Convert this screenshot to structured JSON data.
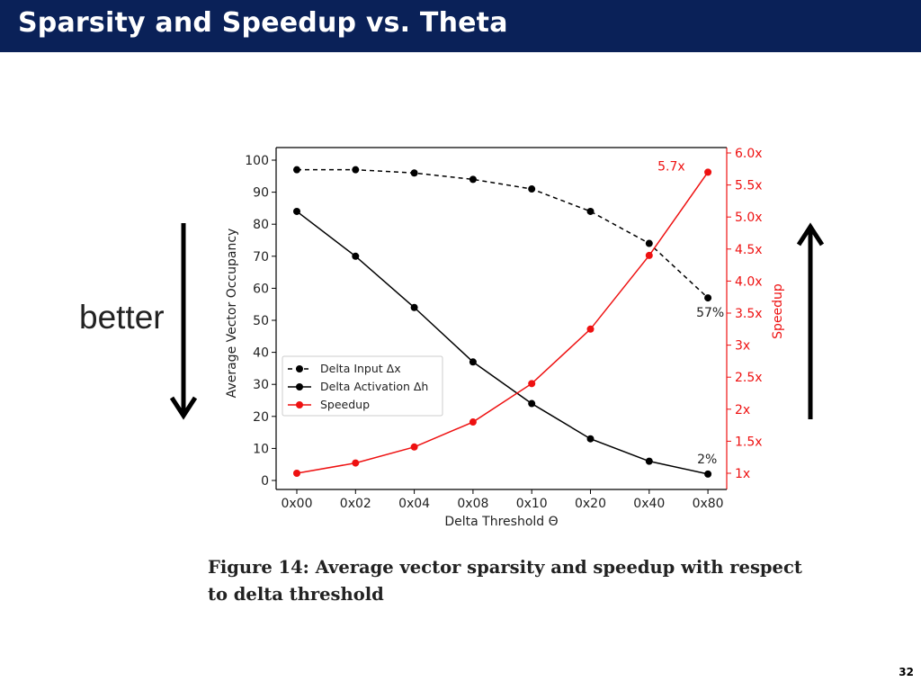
{
  "slide": {
    "title": "Sparsity and Speedup vs. Theta",
    "side_label": "better",
    "caption": "Figure 14: Average vector sparsity and speedup with respect to delta threshold",
    "page_number": "32"
  },
  "chart_data": {
    "type": "line",
    "xlabel": "Delta Threshold Θ",
    "ylabel_left": "Average Vector Occupancy",
    "ylabel_right": "Speedup",
    "categories": [
      "0x00",
      "0x02",
      "0x04",
      "0x08",
      "0x10",
      "0x20",
      "0x40",
      "0x80"
    ],
    "ylim_left": [
      0,
      100
    ],
    "yticks_left": [
      0,
      10,
      20,
      30,
      40,
      50,
      60,
      70,
      80,
      90,
      100
    ],
    "ylim_right": [
      1,
      6
    ],
    "yticks_right": [
      1,
      1.5,
      2,
      2.5,
      3,
      3.5,
      4,
      4.5,
      5,
      5.5,
      6
    ],
    "ytick_labels_right": [
      "1x",
      "1.5x",
      "2x",
      "2.5x",
      "3x",
      "3.5x",
      "4.0x",
      "4.5x",
      "5.0x",
      "5.5x",
      "6.0x"
    ],
    "series": [
      {
        "name": "Delta Input Δx",
        "axis": "left",
        "style": "dashed",
        "color": "#000000",
        "values": [
          97,
          97,
          96,
          94,
          91,
          84,
          74,
          57
        ]
      },
      {
        "name": "Delta Activation Δh",
        "axis": "left",
        "style": "solid",
        "color": "#000000",
        "values": [
          84,
          70,
          54,
          37,
          24,
          13,
          6,
          2
        ]
      },
      {
        "name": "Speedup",
        "axis": "right",
        "style": "solid",
        "color": "#ee1111",
        "values": [
          1.0,
          1.16,
          1.41,
          1.8,
          2.4,
          3.25,
          4.4,
          5.7
        ]
      }
    ],
    "annotations": [
      {
        "text": "5.7x",
        "series": 2,
        "index": 7,
        "color": "#ee1111"
      },
      {
        "text": "57%",
        "series": 0,
        "index": 7,
        "color": "#222222"
      },
      {
        "text": "2%",
        "series": 1,
        "index": 7,
        "color": "#222222"
      }
    ],
    "legend_position": "lower-left",
    "grid": false
  }
}
